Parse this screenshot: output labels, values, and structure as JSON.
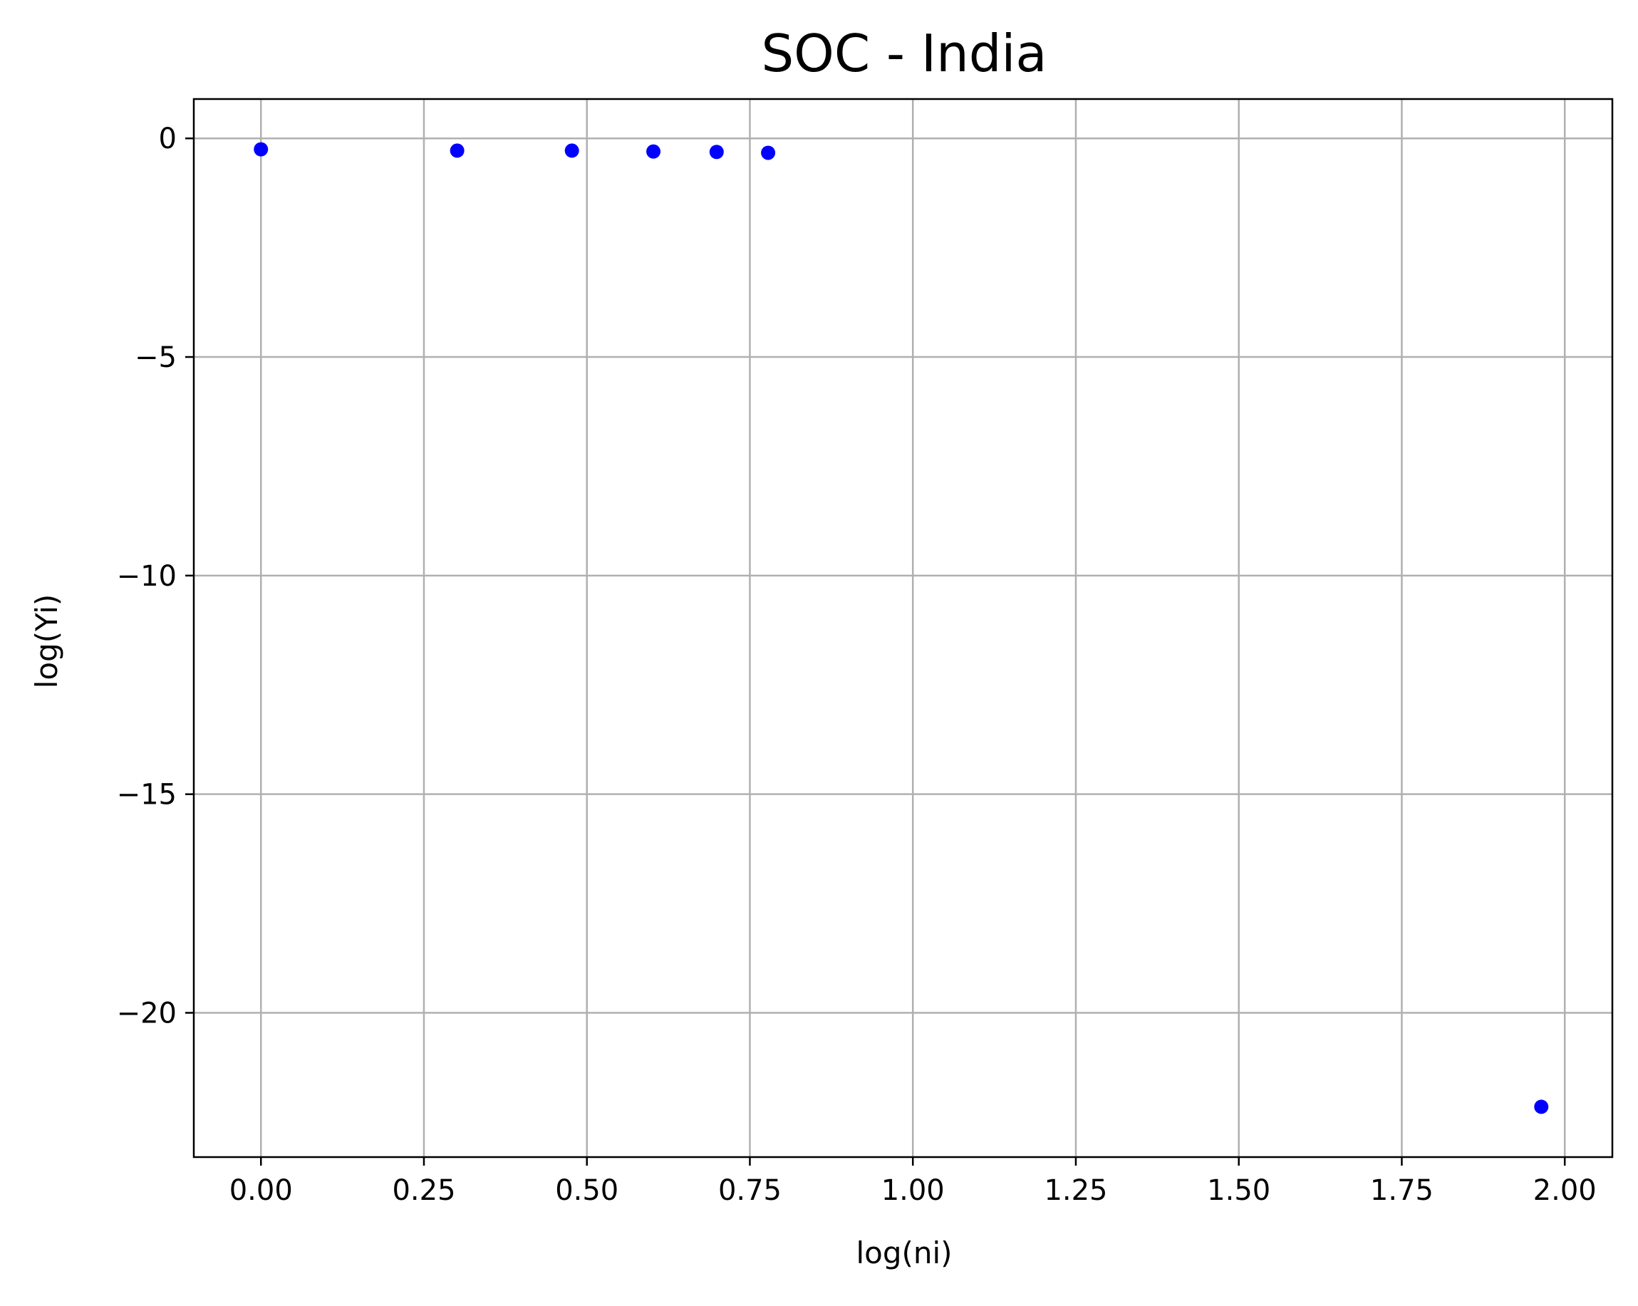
{
  "chart_data": {
    "type": "scatter",
    "title": "SOC - India",
    "xlabel": "log(ni)",
    "ylabel": "log(Yi)",
    "xlim": [
      -0.103,
      2.073
    ],
    "ylim": [
      -23.3,
      0.9
    ],
    "grid": true,
    "x_ticks": [
      {
        "value": 0.0,
        "label": "0.00"
      },
      {
        "value": 0.25,
        "label": "0.25"
      },
      {
        "value": 0.5,
        "label": "0.50"
      },
      {
        "value": 0.75,
        "label": "0.75"
      },
      {
        "value": 1.0,
        "label": "1.00"
      },
      {
        "value": 1.25,
        "label": "1.25"
      },
      {
        "value": 1.5,
        "label": "1.50"
      },
      {
        "value": 1.75,
        "label": "1.75"
      },
      {
        "value": 2.0,
        "label": "2.00"
      }
    ],
    "y_ticks": [
      {
        "value": 0,
        "label": "0"
      },
      {
        "value": -5,
        "label": "−5"
      },
      {
        "value": -10,
        "label": "−10"
      },
      {
        "value": -15,
        "label": "−15"
      },
      {
        "value": -20,
        "label": "−20"
      }
    ],
    "series": [
      {
        "color": "#0000ff",
        "points": [
          {
            "x": 0.0,
            "y": -0.25
          },
          {
            "x": 0.301,
            "y": -0.28
          },
          {
            "x": 0.477,
            "y": -0.28
          },
          {
            "x": 0.602,
            "y": -0.3
          },
          {
            "x": 0.699,
            "y": -0.31
          },
          {
            "x": 0.778,
            "y": -0.33
          },
          {
            "x": 1.964,
            "y": -22.15
          }
        ]
      }
    ],
    "colors": {
      "axis": "#000000",
      "grid": "#b0b0b0",
      "background": "#ffffff"
    }
  }
}
